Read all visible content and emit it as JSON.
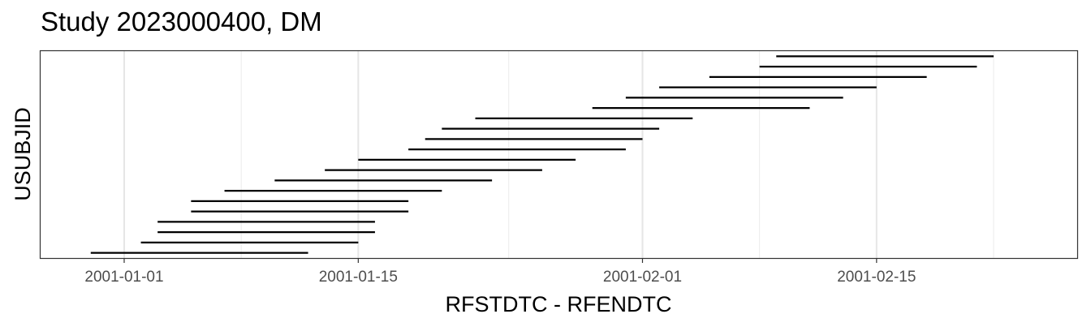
{
  "chart_data": {
    "type": "timeline",
    "title": "Study 2023000400, DM",
    "xlabel": "RFSTDTC - RFENDTC",
    "ylabel": "USUBJID",
    "x_axis": {
      "scale": "date",
      "range": [
        "2000-12-27",
        "2001-02-27"
      ],
      "ticks": [
        "2001-01-01",
        "2001-01-15",
        "2001-02-01",
        "2001-02-15"
      ],
      "minor_gridlines": [
        "2001-01-08",
        "2001-01-24",
        "2001-02-08",
        "2001-02-22"
      ]
    },
    "grid": true,
    "segments": [
      {
        "start": "2000-12-30",
        "end": "2001-01-12"
      },
      {
        "start": "2001-01-02",
        "end": "2001-01-15"
      },
      {
        "start": "2001-01-03",
        "end": "2001-01-16"
      },
      {
        "start": "2001-01-03",
        "end": "2001-01-16"
      },
      {
        "start": "2001-01-05",
        "end": "2001-01-18"
      },
      {
        "start": "2001-01-05",
        "end": "2001-01-18"
      },
      {
        "start": "2001-01-07",
        "end": "2001-01-20"
      },
      {
        "start": "2001-01-10",
        "end": "2001-01-23"
      },
      {
        "start": "2001-01-13",
        "end": "2001-01-26"
      },
      {
        "start": "2001-01-15",
        "end": "2001-01-28"
      },
      {
        "start": "2001-01-18",
        "end": "2001-01-31"
      },
      {
        "start": "2001-01-19",
        "end": "2001-02-01"
      },
      {
        "start": "2001-01-20",
        "end": "2001-02-02"
      },
      {
        "start": "2001-01-22",
        "end": "2001-02-04"
      },
      {
        "start": "2001-01-29",
        "end": "2001-02-11"
      },
      {
        "start": "2001-01-31",
        "end": "2001-02-13"
      },
      {
        "start": "2001-02-02",
        "end": "2001-02-15"
      },
      {
        "start": "2001-02-05",
        "end": "2001-02-18"
      },
      {
        "start": "2001-02-08",
        "end": "2001-02-21"
      },
      {
        "start": "2001-02-09",
        "end": "2001-02-22"
      }
    ]
  }
}
